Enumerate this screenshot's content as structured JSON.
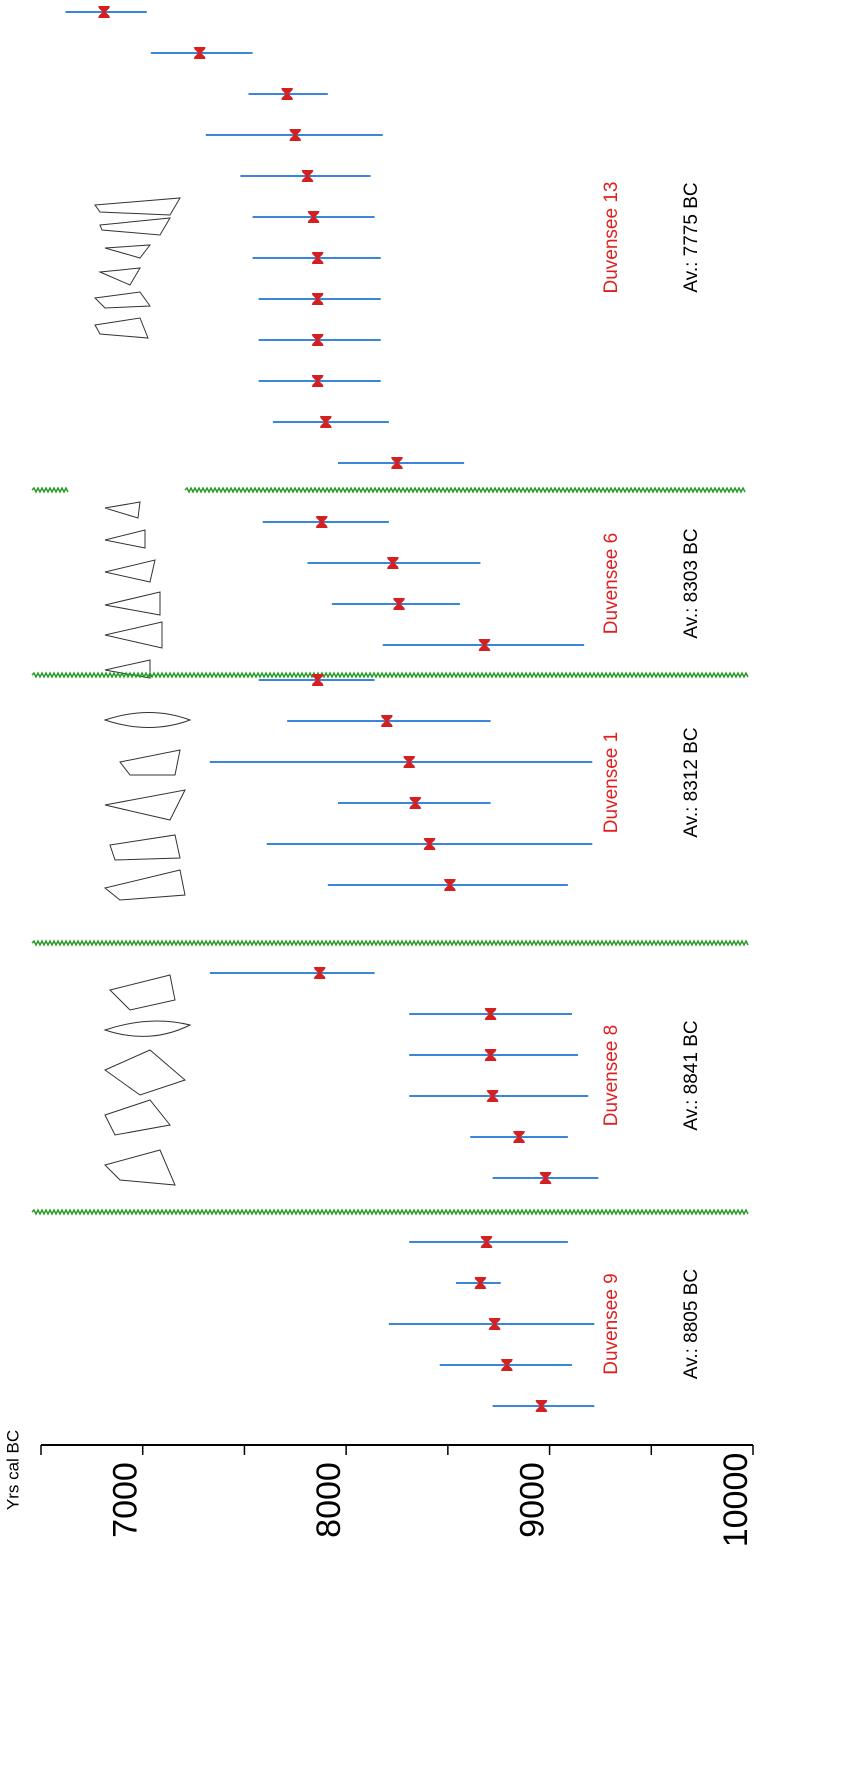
{
  "chart_data": {
    "type": "range",
    "xlabel": "Yrs cal BC",
    "xlim": [
      6500,
      10000
    ],
    "xticks": [
      7000,
      8000,
      9000,
      10000
    ],
    "minor_xticks": [
      6500,
      7500,
      8500,
      9500
    ],
    "bar_color": "#3a86d8",
    "point_color": "#d42020",
    "divider_color": "#2a9a2a",
    "series": [
      {
        "name": "Duvensee 13",
        "average_label": "Av.: 7775 BC",
        "values": [
          6810,
          7280,
          7710,
          7750,
          7810,
          7840,
          7860,
          7860,
          7860,
          7860,
          7900,
          8250
        ],
        "low": [
          6620,
          7040,
          7520,
          7310,
          7480,
          7540,
          7540,
          7570,
          7570,
          7570,
          7640,
          7960
        ],
        "high": [
          7020,
          7540,
          7910,
          8180,
          8120,
          8140,
          8170,
          8170,
          8170,
          8170,
          8210,
          8580
        ]
      },
      {
        "name": "Duvensee 6",
        "average_label": "Av.: 8303 BC",
        "values": [
          7880,
          8230,
          8260,
          8680
        ],
        "low": [
          7590,
          7810,
          7930,
          8180
        ],
        "high": [
          8210,
          8660,
          8560,
          9170
        ]
      },
      {
        "name": "Duvensee 1",
        "average_label": "Av.: 8312 BC",
        "values": [
          7860,
          8200,
          8310,
          8340,
          8410,
          8510
        ],
        "low": [
          7570,
          7710,
          7330,
          7960,
          7610,
          7910
        ],
        "high": [
          8140,
          8710,
          9210,
          8710,
          9210,
          9090
        ]
      },
      {
        "name": "Duvensee 8",
        "average_label": "Av.: 8841 BC",
        "values": [
          7870,
          8710,
          8710,
          8720,
          8850,
          8980
        ],
        "low": [
          7330,
          8310,
          8310,
          8310,
          8610,
          8720
        ],
        "high": [
          8140,
          9110,
          9140,
          9190,
          9090,
          9240
        ]
      },
      {
        "name": "Duvensee 9",
        "average_label": "Av.: 8805 BC",
        "values": [
          8690,
          8660,
          8730,
          8790,
          8960
        ],
        "low": [
          8310,
          8540,
          8210,
          8460,
          8720
        ],
        "high": [
          9090,
          8760,
          9220,
          9110,
          9220
        ]
      }
    ]
  }
}
